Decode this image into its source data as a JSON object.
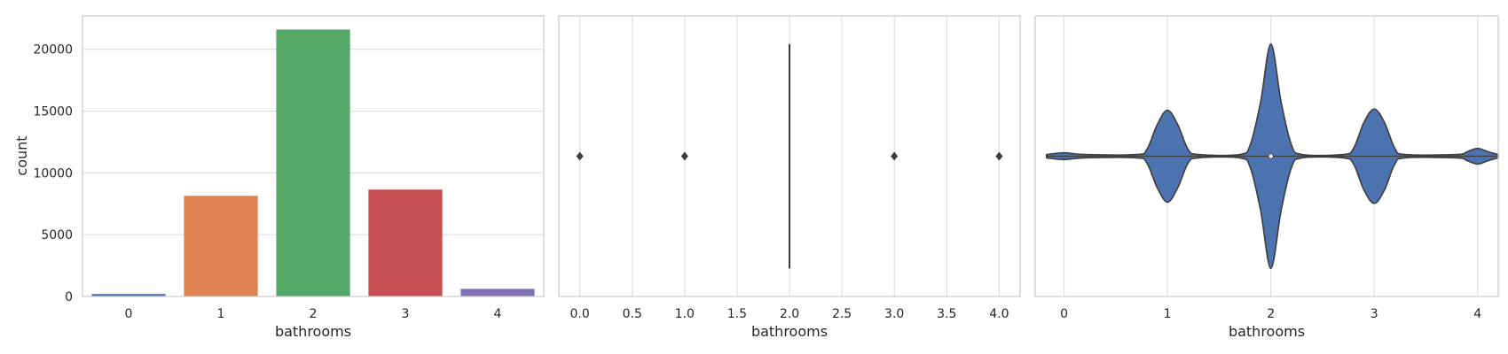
{
  "chart_data": [
    {
      "type": "bar",
      "xlabel": "bathrooms",
      "ylabel": "count",
      "categories": [
        "0",
        "1",
        "2",
        "3",
        "4"
      ],
      "values": [
        200,
        8150,
        21600,
        8650,
        620
      ],
      "colors": [
        "#4c72b0",
        "#dd8452",
        "#55a868",
        "#c44e52",
        "#8172b3"
      ],
      "ylim": [
        0,
        22700
      ],
      "yticks": [
        0,
        5000,
        10000,
        15000,
        20000
      ],
      "ytick_labels": [
        "0",
        "5000",
        "10000",
        "15000",
        "20000"
      ],
      "grid": "horizontal"
    },
    {
      "type": "boxplot",
      "orientation": "horizontal",
      "xlabel": "bathrooms",
      "xlim": [
        -0.2,
        4.2
      ],
      "xticks": [
        0.0,
        0.5,
        1.0,
        1.5,
        2.0,
        2.5,
        3.0,
        3.5,
        4.0
      ],
      "xtick_labels": [
        "0.0",
        "0.5",
        "1.0",
        "1.5",
        "2.0",
        "2.5",
        "3.0",
        "3.5",
        "4.0"
      ],
      "q1": 2,
      "median": 2,
      "q3": 2,
      "whisker_low": 2,
      "whisker_high": 2,
      "outliers": [
        0,
        1,
        3,
        4
      ],
      "color": "#4c72b0",
      "grid": "vertical"
    },
    {
      "type": "violin",
      "orientation": "horizontal",
      "xlabel": "bathrooms",
      "xlim": [
        -0.28,
        4.2
      ],
      "xticks": [
        0,
        1,
        2,
        3,
        4
      ],
      "xtick_labels": [
        "0",
        "1",
        "2",
        "3",
        "4"
      ],
      "color": "#4c72b0",
      "median": 2,
      "density": [
        {
          "x": -0.17,
          "d": 0.015
        },
        {
          "x": 0.0,
          "d": 0.03
        },
        {
          "x": 0.2,
          "d": 0.015
        },
        {
          "x": 0.7,
          "d": 0.015
        },
        {
          "x": 0.8,
          "d": 0.06
        },
        {
          "x": 0.9,
          "d": 0.28
        },
        {
          "x": 1.0,
          "d": 0.41
        },
        {
          "x": 1.1,
          "d": 0.28
        },
        {
          "x": 1.2,
          "d": 0.06
        },
        {
          "x": 1.3,
          "d": 0.015
        },
        {
          "x": 1.7,
          "d": 0.015
        },
        {
          "x": 1.8,
          "d": 0.1
        },
        {
          "x": 1.9,
          "d": 0.48
        },
        {
          "x": 2.0,
          "d": 1.0
        },
        {
          "x": 2.1,
          "d": 0.48
        },
        {
          "x": 2.2,
          "d": 0.1
        },
        {
          "x": 2.3,
          "d": 0.015
        },
        {
          "x": 2.7,
          "d": 0.015
        },
        {
          "x": 2.8,
          "d": 0.07
        },
        {
          "x": 2.9,
          "d": 0.3
        },
        {
          "x": 3.0,
          "d": 0.42
        },
        {
          "x": 3.1,
          "d": 0.3
        },
        {
          "x": 3.2,
          "d": 0.07
        },
        {
          "x": 3.3,
          "d": 0.015
        },
        {
          "x": 3.8,
          "d": 0.015
        },
        {
          "x": 3.9,
          "d": 0.04
        },
        {
          "x": 4.0,
          "d": 0.07
        },
        {
          "x": 4.1,
          "d": 0.04
        },
        {
          "x": 4.2,
          "d": 0.015
        }
      ],
      "grid": "vertical"
    }
  ]
}
